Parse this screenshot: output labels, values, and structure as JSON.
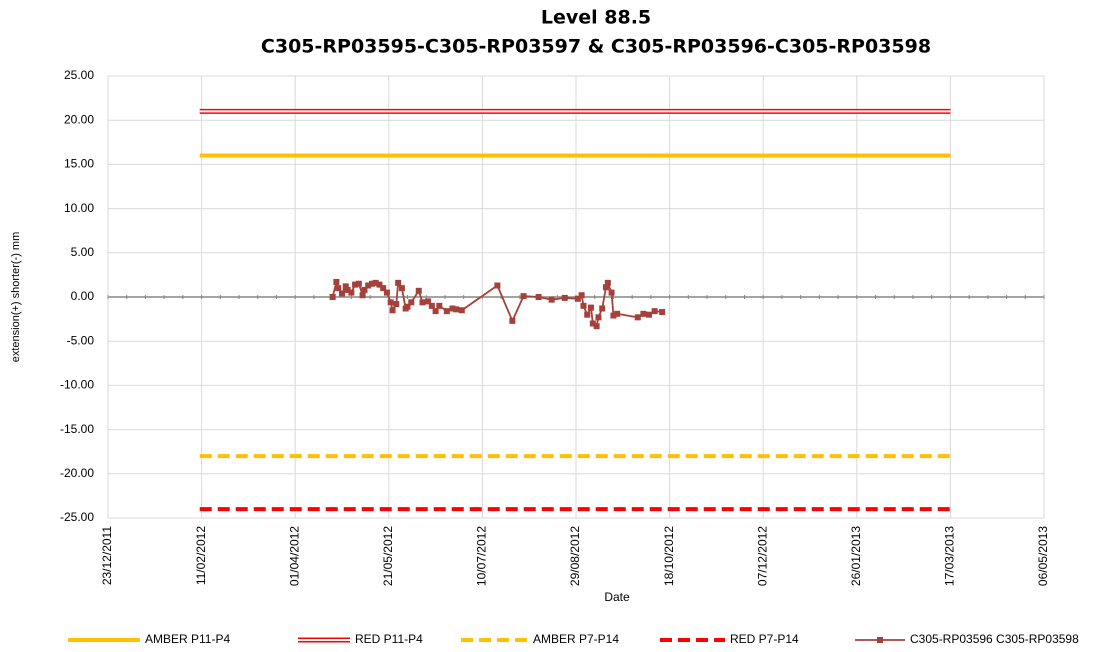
{
  "chart_data": {
    "type": "line",
    "title": "Level 88.5",
    "subtitle": "C305-RP03595-C305-RP03597 & C305-RP03596-C305-RP03598",
    "x_label": "Date",
    "y_label": "extension(+) shorter(-) mm",
    "xlim": [
      "23/12/2011",
      "06/05/2013"
    ],
    "xticks": [
      "23/12/2011",
      "11/02/2012",
      "01/04/2012",
      "21/05/2012",
      "10/07/2012",
      "29/08/2012",
      "18/10/2012",
      "07/12/2012",
      "26/01/2013",
      "17/03/2013",
      "06/05/2013"
    ],
    "ylim": [
      -25,
      25
    ],
    "yticks": [
      {
        "value": -25,
        "label": "-25.00"
      },
      {
        "value": -20,
        "label": "-20.00"
      },
      {
        "value": -15,
        "label": "-15.00"
      },
      {
        "value": -10,
        "label": "-10.00"
      },
      {
        "value": -5,
        "label": "-5.00"
      },
      {
        "value": 0,
        "label": "0.00"
      },
      {
        "value": 5,
        "label": "5.00"
      },
      {
        "value": 10,
        "label": "10.00"
      },
      {
        "value": 15,
        "label": "15.00"
      },
      {
        "value": 20,
        "label": "20.00"
      },
      {
        "value": 25,
        "label": "25.00"
      }
    ],
    "grid": true,
    "legend": "bottom",
    "series": [
      {
        "name": "AMBER P11-P4",
        "color": "#ffc000",
        "style": "solid",
        "x": [
          "10/02/2012",
          "17/03/2013"
        ],
        "values": [
          16,
          16
        ]
      },
      {
        "name": "RED P11-P4",
        "color": "#ff0000",
        "style": "double",
        "x": [
          "10/02/2012",
          "17/03/2013"
        ],
        "values": [
          21,
          21
        ]
      },
      {
        "name": "AMBER P7-P14",
        "color": "#ffc000",
        "style": "dashed",
        "x": [
          "10/02/2012",
          "17/03/2013"
        ],
        "values": [
          -18,
          -18
        ]
      },
      {
        "name": "RED P7-P14",
        "color": "#ff0000",
        "style": "dashed",
        "x": [
          "10/02/2012",
          "17/03/2013"
        ],
        "values": [
          -24,
          -24
        ]
      },
      {
        "name": "C305-RP03596 C305-RP03598",
        "color": "#a5403a",
        "style": "marker",
        "x": [
          "21/04/2012",
          "23/04/2012",
          "24/04/2012",
          "26/04/2012",
          "28/04/2012",
          "29/04/2012",
          "01/05/2012",
          "03/05/2012",
          "05/05/2012",
          "07/05/2012",
          "08/05/2012",
          "10/05/2012",
          "12/05/2012",
          "14/05/2012",
          "16/05/2012",
          "18/05/2012",
          "20/05/2012",
          "22/05/2012",
          "23/05/2012",
          "25/05/2012",
          "26/05/2012",
          "28/05/2012",
          "30/05/2012",
          "31/05/2012",
          "02/06/2012",
          "06/06/2012",
          "08/06/2012",
          "11/06/2012",
          "13/06/2012",
          "15/06/2012",
          "17/06/2012",
          "21/06/2012",
          "24/06/2012",
          "26/06/2012",
          "29/06/2012",
          "18/07/2012",
          "26/07/2012",
          "01/08/2012",
          "09/08/2012",
          "16/08/2012",
          "23/08/2012",
          "30/08/2012",
          "01/09/2012",
          "02/09/2012",
          "04/09/2012",
          "06/09/2012",
          "07/09/2012",
          "09/09/2012",
          "10/09/2012",
          "12/09/2012",
          "14/09/2012",
          "15/09/2012",
          "17/09/2012",
          "18/09/2012",
          "20/09/2012",
          "01/10/2012",
          "04/10/2012",
          "07/10/2012",
          "10/10/2012",
          "14/10/2012"
        ],
        "values": [
          0.0,
          1.7,
          1.0,
          0.4,
          1.2,
          0.8,
          0.5,
          1.4,
          1.5,
          0.2,
          0.8,
          1.3,
          1.5,
          1.6,
          1.4,
          1.0,
          0.5,
          -0.6,
          -1.5,
          -0.8,
          1.6,
          1.0,
          -1.3,
          -1.1,
          -0.6,
          0.7,
          -0.6,
          -0.5,
          -1.0,
          -1.6,
          -1.0,
          -1.6,
          -1.3,
          -1.4,
          -1.5,
          1.3,
          -2.7,
          0.1,
          0.0,
          -0.3,
          -0.1,
          -0.2,
          0.2,
          -1.0,
          -2.0,
          -1.2,
          -3.0,
          -3.3,
          -2.3,
          -1.3,
          1.1,
          1.6,
          0.5,
          -2.1,
          -1.9,
          -2.3,
          -1.9,
          -2.0,
          -1.6,
          -1.7
        ]
      }
    ]
  }
}
